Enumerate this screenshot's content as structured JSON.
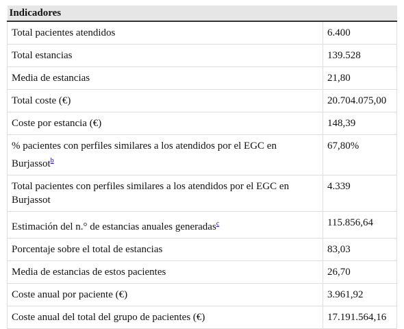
{
  "table": {
    "header": "Indicadores",
    "rows": [
      {
        "label": "Total pacientes atendidos",
        "value": "6.400"
      },
      {
        "label": "Total estancias",
        "value": "139.528"
      },
      {
        "label": "Media de estancias",
        "value": "21,80"
      },
      {
        "label": "Total coste (€)",
        "value": "20.704.075,00"
      },
      {
        "label": "Coste por estancia (€)",
        "value": "148,39"
      },
      {
        "label": "% pacientes con perfiles similares a los atendidos por el EGC en Burjassot",
        "note": "b",
        "value": "67,80%"
      },
      {
        "label": "Total pacientes con perfiles similares a los atendidos por el EGC en Burjassot",
        "value": "4.339"
      },
      {
        "label": "Estimación del n.° de estancias anuales generadas",
        "note": "c",
        "value": "115.856,64"
      },
      {
        "label": "Porcentaje sobre el total de estancias",
        "value": "83,03"
      },
      {
        "label": "Media de estancias de estos pacientes",
        "value": "26,70"
      },
      {
        "label": "Coste anual por paciente (€)",
        "value": "3.961,92"
      },
      {
        "label": "Coste anual del total del grupo de pacientes (€)",
        "value": "17.191.564,16"
      }
    ]
  }
}
